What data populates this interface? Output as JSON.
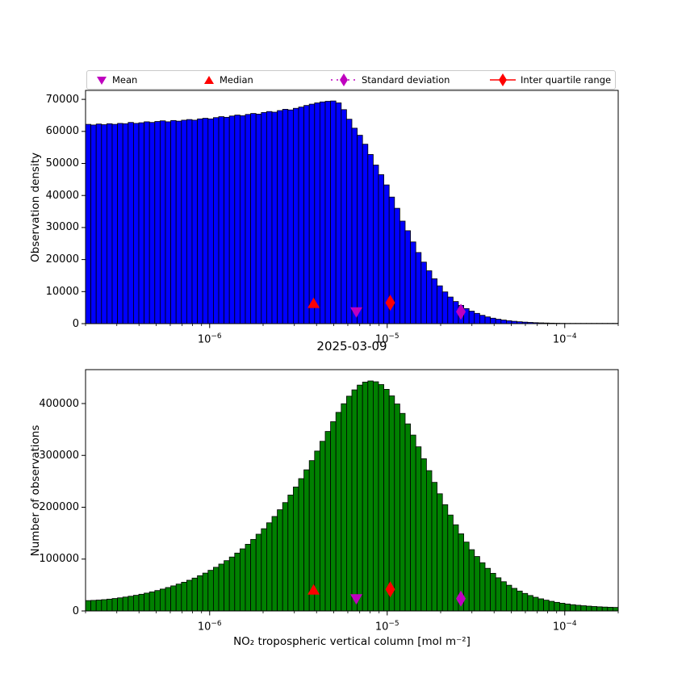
{
  "figure": {
    "date_title": "2025-03-09",
    "xlabel": "NO₂ tropospheric vertical column [mol m⁻²]",
    "background": "#ffffff",
    "frame_color": "#000000"
  },
  "legend": {
    "entries": [
      {
        "label": "Mean",
        "marker": "triangle-down",
        "color": "#bf00bf",
        "line": "none"
      },
      {
        "label": "Median",
        "marker": "triangle-up",
        "color": "#ff0000",
        "line": "none"
      },
      {
        "label": "Standard deviation",
        "marker": "diamond",
        "color": "#bf00bf",
        "line": "dotted"
      },
      {
        "label": "Inter quartile range",
        "marker": "diamond",
        "color": "#ff0000",
        "line": "solid"
      }
    ]
  },
  "chart_data": [
    {
      "type": "bar",
      "subtype": "histogram",
      "ylabel": "Observation density",
      "xscale": "log",
      "xlim": [
        2e-07,
        0.0002
      ],
      "ylim": [
        0,
        72800
      ],
      "grid": false,
      "yticks": [
        0,
        10000,
        20000,
        30000,
        40000,
        50000,
        60000,
        70000
      ],
      "xticks": [
        {
          "value": 1e-06,
          "base": "10",
          "exp": "−6"
        },
        {
          "value": 1e-05,
          "base": "10",
          "exp": "−5"
        },
        {
          "value": 0.0001,
          "base": "10",
          "exp": "−4"
        }
      ],
      "bar_color": "#0000ff",
      "bar_edge_color": "#000000",
      "n_bins": 100,
      "values": [
        62200,
        62000,
        62300,
        62100,
        62400,
        62200,
        62500,
        62400,
        62800,
        62500,
        62700,
        63000,
        62800,
        63100,
        63300,
        63000,
        63400,
        63200,
        63500,
        63700,
        63500,
        63900,
        64100,
        63900,
        64300,
        64600,
        64400,
        64800,
        65100,
        64900,
        65300,
        65600,
        65400,
        65900,
        66200,
        66000,
        66500,
        66900,
        66700,
        67200,
        67600,
        68100,
        68500,
        68900,
        69200,
        69400,
        69500,
        68900,
        66800,
        63800,
        61000,
        58800,
        56000,
        52800,
        49500,
        46500,
        43300,
        39500,
        36000,
        32000,
        29000,
        25500,
        22200,
        19200,
        16500,
        14000,
        11800,
        9900,
        8300,
        6900,
        5700,
        4700,
        3900,
        3200,
        2600,
        2100,
        1700,
        1380,
        1120,
        900,
        730,
        590,
        470,
        380,
        300,
        240,
        195,
        155,
        125,
        100,
        80,
        64,
        51,
        41,
        33,
        26,
        21,
        17,
        13,
        11
      ],
      "markers": {
        "median": 3.85e-06,
        "mean": 6.7e-06,
        "std": 2.6e-05,
        "iqr": 1.04e-05
      }
    },
    {
      "type": "bar",
      "subtype": "histogram",
      "ylabel": "Number of observations",
      "xscale": "log",
      "xlim": [
        2e-07,
        0.0002
      ],
      "ylim": [
        0,
        465400
      ],
      "grid": false,
      "yticks": [
        0,
        100000,
        200000,
        300000,
        400000
      ],
      "xticks": [
        {
          "value": 1e-06,
          "base": "10",
          "exp": "−6"
        },
        {
          "value": 1e-05,
          "base": "10",
          "exp": "−5"
        },
        {
          "value": 0.0001,
          "base": "10",
          "exp": "−4"
        }
      ],
      "bar_color": "#008000",
      "bar_edge_color": "#000000",
      "n_bins": 100,
      "values": [
        20000,
        20400,
        21000,
        21800,
        22800,
        24000,
        25300,
        26800,
        28400,
        30200,
        32200,
        34400,
        36800,
        39400,
        42200,
        45200,
        48400,
        51800,
        55400,
        59200,
        63400,
        68000,
        73000,
        78400,
        84200,
        90400,
        97000,
        104000,
        111600,
        119800,
        128600,
        138000,
        148000,
        158600,
        170000,
        182200,
        195200,
        209000,
        223600,
        239000,
        255200,
        272200,
        290000,
        308400,
        327200,
        346200,
        365000,
        383000,
        399600,
        414200,
        426400,
        435600,
        441400,
        443600,
        442000,
        436600,
        427400,
        414800,
        399200,
        381000,
        360800,
        339200,
        316600,
        293600,
        270600,
        248000,
        226000,
        205000,
        185000,
        166200,
        148800,
        132800,
        118200,
        105000,
        93000,
        82200,
        72600,
        64000,
        56400,
        49600,
        43600,
        38400,
        33800,
        29800,
        26400,
        23400,
        20800,
        18600,
        16600,
        14900,
        13400,
        12100,
        11000,
        10100,
        9300,
        8600,
        8000,
        7500,
        7100,
        6800
      ],
      "markers": {
        "median": 3.85e-06,
        "mean": 6.7e-06,
        "std": 2.6e-05,
        "iqr": 1.04e-05
      }
    }
  ]
}
